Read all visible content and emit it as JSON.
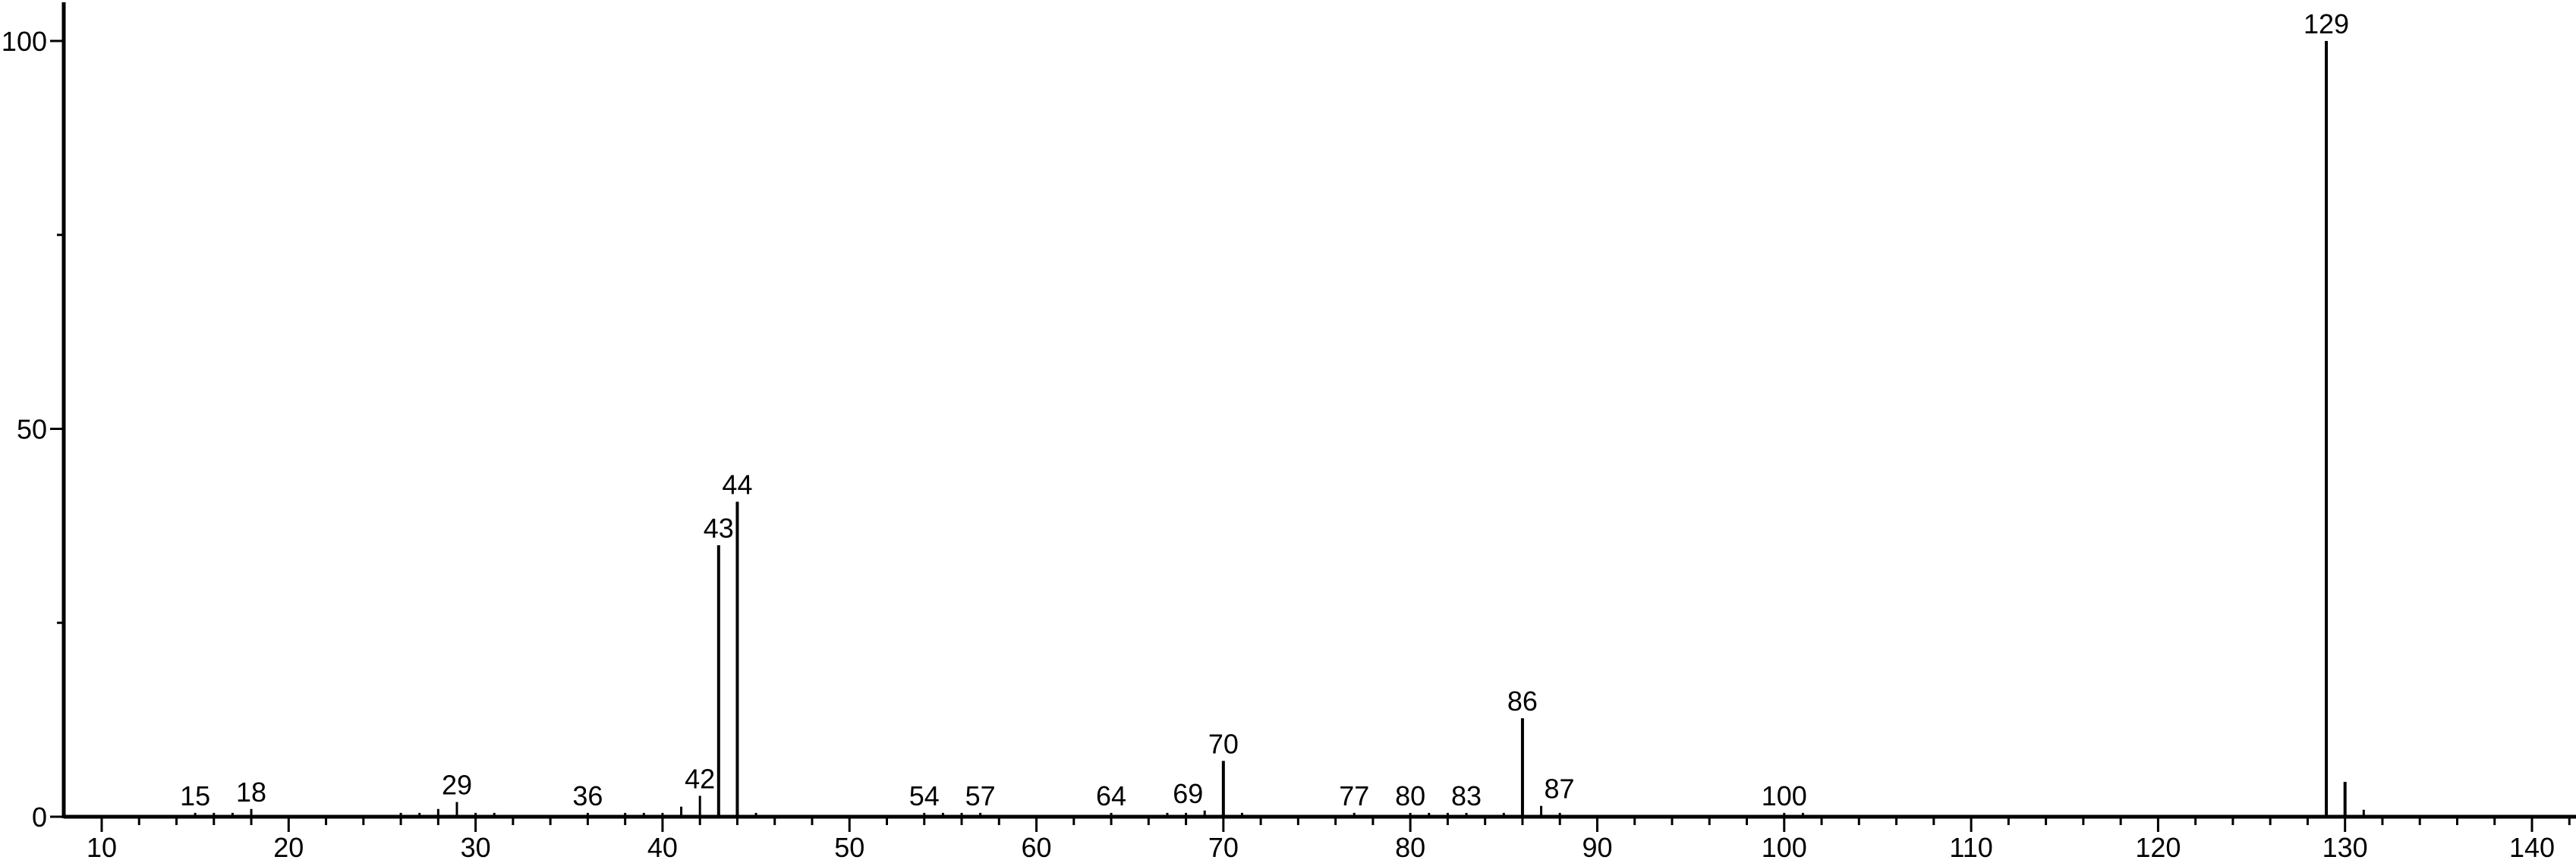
{
  "chart_data": {
    "type": "bar",
    "title": "",
    "xlabel": "",
    "ylabel": "",
    "xlim": [
      8,
      142
    ],
    "ylim": [
      0,
      100
    ],
    "grid": false,
    "line_color": "#000000",
    "x_ticks": [
      10,
      20,
      30,
      40,
      50,
      60,
      70,
      80,
      90,
      100,
      110,
      120,
      130,
      140
    ],
    "x_tick_labels": [
      "10",
      "20",
      "30",
      "40",
      "50",
      "60",
      "70",
      "80",
      "90",
      "100",
      "110",
      "120",
      "130",
      "140"
    ],
    "y_ticks": [
      0,
      25,
      50,
      75,
      100
    ],
    "y_tick_labels": [
      "0",
      "",
      "50",
      "",
      "100"
    ],
    "peaks": [
      {
        "x": 15,
        "y": 0.5,
        "label": "15"
      },
      {
        "x": 16,
        "y": 0.5
      },
      {
        "x": 17,
        "y": 0.5
      },
      {
        "x": 18,
        "y": 1.0,
        "label": "18"
      },
      {
        "x": 26,
        "y": 0.5
      },
      {
        "x": 27,
        "y": 0.5
      },
      {
        "x": 28,
        "y": 1.0
      },
      {
        "x": 29,
        "y": 1.9,
        "label": "29"
      },
      {
        "x": 30,
        "y": 0.5
      },
      {
        "x": 31,
        "y": 0.5
      },
      {
        "x": 36,
        "y": 0.5,
        "label": "36"
      },
      {
        "x": 38,
        "y": 0.5
      },
      {
        "x": 39,
        "y": 0.5
      },
      {
        "x": 40,
        "y": 0.5
      },
      {
        "x": 41,
        "y": 1.3
      },
      {
        "x": 42,
        "y": 2.7,
        "label": "42"
      },
      {
        "x": 43,
        "y": 35.0,
        "label": "43"
      },
      {
        "x": 44,
        "y": 40.6,
        "label": "44"
      },
      {
        "x": 45,
        "y": 0.5
      },
      {
        "x": 54,
        "y": 0.5,
        "label": "54"
      },
      {
        "x": 55,
        "y": 0.5
      },
      {
        "x": 56,
        "y": 0.5
      },
      {
        "x": 57,
        "y": 0.5,
        "label": "57"
      },
      {
        "x": 64,
        "y": 0.5,
        "label": "64"
      },
      {
        "x": 67,
        "y": 0.5
      },
      {
        "x": 68,
        "y": 0.5
      },
      {
        "x": 69,
        "y": 0.8,
        "label": "69"
      },
      {
        "x": 70,
        "y": 7.2,
        "label": "70"
      },
      {
        "x": 71,
        "y": 0.5
      },
      {
        "x": 77,
        "y": 0.5,
        "label": "77"
      },
      {
        "x": 80,
        "y": 0.5,
        "label": "80"
      },
      {
        "x": 81,
        "y": 0.5
      },
      {
        "x": 82,
        "y": 0.5
      },
      {
        "x": 83,
        "y": 0.5,
        "label": "83"
      },
      {
        "x": 85,
        "y": 0.5
      },
      {
        "x": 86,
        "y": 12.7,
        "label": "86"
      },
      {
        "x": 87,
        "y": 1.4,
        "label": "87"
      },
      {
        "x": 88,
        "y": 0.5
      },
      {
        "x": 100,
        "y": 0.5,
        "label": "100"
      },
      {
        "x": 101,
        "y": 0.5
      },
      {
        "x": 129,
        "y": 100.0,
        "label": "129"
      },
      {
        "x": 130,
        "y": 4.5
      },
      {
        "x": 131,
        "y": 0.9
      }
    ]
  }
}
